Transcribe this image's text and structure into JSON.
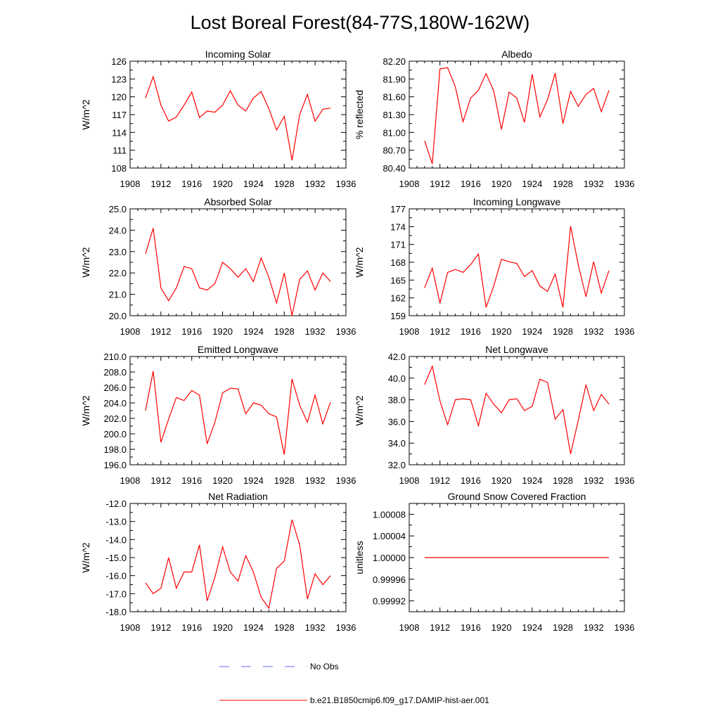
{
  "title": "Lost Boreal Forest(84-77S,180W-162W)",
  "legend": [
    {
      "label": "No Obs",
      "color": "#6a6aff",
      "dashed": true
    },
    {
      "label": "b.e21.B1850cmip6.f09_g17.DAMIP-hist-aer.001",
      "color": "#ff0000",
      "dashed": false
    }
  ],
  "chart_data": [
    {
      "type": "line",
      "title": "Incoming Solar",
      "ylabel": "W/m^2",
      "xlabel": "",
      "xlim": [
        1908,
        1936
      ],
      "xticks": [
        1908,
        1912,
        1916,
        1920,
        1924,
        1928,
        1932,
        1936
      ],
      "xtick_labels": [
        "1908",
        "1912",
        "1916",
        "1920",
        "1924",
        "1928",
        "1932",
        "1936"
      ],
      "ylim": [
        108,
        126
      ],
      "yticks": [
        108,
        111,
        114,
        117,
        120,
        123,
        126
      ],
      "ytick_labels": [
        "108",
        "111",
        "114",
        "117",
        "120",
        "123",
        "126"
      ],
      "series": [
        {
          "name": "b.e21.B1850cmip6.f09_g17.DAMIP-hist-aer.001",
          "color": "#ff0000",
          "x": [
            1910,
            1911,
            1912,
            1913,
            1914,
            1915,
            1916,
            1917,
            1918,
            1919,
            1920,
            1921,
            1922,
            1923,
            1924,
            1925,
            1926,
            1927,
            1928,
            1929,
            1930,
            1931,
            1932,
            1933,
            1934
          ],
          "y": [
            119.8,
            123.4,
            118.6,
            115.9,
            116.6,
            118.6,
            120.8,
            116.5,
            117.6,
            117.4,
            118.6,
            121.0,
            118.6,
            117.6,
            119.8,
            120.9,
            118.0,
            114.4,
            116.7,
            109.3,
            117.0,
            120.4,
            115.9,
            117.9,
            118.1
          ]
        }
      ]
    },
    {
      "type": "line",
      "title": "Albedo",
      "ylabel": "% reflected",
      "xlabel": "",
      "xlim": [
        1908,
        1936
      ],
      "xticks": [
        1908,
        1912,
        1916,
        1920,
        1924,
        1928,
        1932,
        1936
      ],
      "xtick_labels": [
        "1908",
        "1912",
        "1916",
        "1920",
        "1924",
        "1928",
        "1932",
        "1936"
      ],
      "ylim": [
        80.4,
        82.2
      ],
      "yticks": [
        80.4,
        80.7,
        81.0,
        81.3,
        81.6,
        81.9,
        82.2
      ],
      "ytick_labels": [
        "80.40",
        "80.70",
        "81.00",
        "81.30",
        "81.60",
        "81.90",
        "82.20"
      ],
      "series": [
        {
          "name": "b.e21.B1850cmip6.f09_g17.DAMIP-hist-aer.001",
          "color": "#ff0000",
          "x": [
            1910,
            1911,
            1912,
            1913,
            1914,
            1915,
            1916,
            1917,
            1918,
            1919,
            1920,
            1921,
            1922,
            1923,
            1924,
            1925,
            1926,
            1927,
            1928,
            1929,
            1930,
            1931,
            1932,
            1933,
            1934
          ],
          "y": [
            80.86,
            80.47,
            82.07,
            82.09,
            81.77,
            81.18,
            81.58,
            81.71,
            81.99,
            81.7,
            81.05,
            81.68,
            81.58,
            81.17,
            81.98,
            81.26,
            81.55,
            82.0,
            81.15,
            81.69,
            81.44,
            81.64,
            81.74,
            81.35,
            81.71
          ]
        }
      ]
    },
    {
      "type": "line",
      "title": "Absorbed Solar",
      "ylabel": "W/m^2",
      "xlabel": "",
      "xlim": [
        1908,
        1936
      ],
      "xticks": [
        1908,
        1912,
        1916,
        1920,
        1924,
        1928,
        1932,
        1936
      ],
      "xtick_labels": [
        "1908",
        "1912",
        "1916",
        "1920",
        "1924",
        "1928",
        "1932",
        "1936"
      ],
      "ylim": [
        20.0,
        25.0
      ],
      "yticks": [
        20,
        21,
        22,
        23,
        24,
        25
      ],
      "ytick_labels": [
        "20.0",
        "21.0",
        "22.0",
        "23.0",
        "24.0",
        "25.0"
      ],
      "series": [
        {
          "name": "b.e21.B1850cmip6.f09_g17.DAMIP-hist-aer.001",
          "color": "#ff0000",
          "x": [
            1910,
            1911,
            1912,
            1913,
            1914,
            1915,
            1916,
            1917,
            1918,
            1919,
            1920,
            1921,
            1922,
            1923,
            1924,
            1925,
            1926,
            1927,
            1928,
            1929,
            1930,
            1931,
            1932,
            1933,
            1934
          ],
          "y": [
            22.9,
            24.1,
            21.3,
            20.7,
            21.3,
            22.3,
            22.2,
            21.3,
            21.2,
            21.5,
            22.5,
            22.2,
            21.8,
            22.2,
            21.6,
            22.7,
            21.8,
            20.6,
            22.0,
            20.0,
            21.7,
            22.1,
            21.2,
            22.0,
            21.6
          ]
        }
      ]
    },
    {
      "type": "line",
      "title": "Incoming Longwave",
      "ylabel": "W/m^2",
      "xlabel": "",
      "xlim": [
        1908,
        1936
      ],
      "xticks": [
        1908,
        1912,
        1916,
        1920,
        1924,
        1928,
        1932,
        1936
      ],
      "xtick_labels": [
        "1908",
        "1912",
        "1916",
        "1920",
        "1924",
        "1928",
        "1932",
        "1936"
      ],
      "ylim": [
        159,
        177
      ],
      "yticks": [
        159,
        162,
        165,
        168,
        171,
        174,
        177
      ],
      "ytick_labels": [
        "159",
        "162",
        "165",
        "168",
        "171",
        "174",
        "177"
      ],
      "series": [
        {
          "name": "b.e21.B1850cmip6.f09_g17.DAMIP-hist-aer.001",
          "color": "#ff0000",
          "x": [
            1910,
            1911,
            1912,
            1913,
            1914,
            1915,
            1916,
            1917,
            1918,
            1919,
            1920,
            1921,
            1922,
            1923,
            1924,
            1925,
            1926,
            1927,
            1928,
            1929,
            1930,
            1931,
            1932,
            1933,
            1934
          ],
          "y": [
            163.7,
            167.0,
            161.1,
            166.3,
            166.8,
            166.3,
            167.6,
            169.4,
            160.4,
            164.0,
            168.5,
            168.1,
            167.8,
            165.6,
            166.6,
            164.0,
            163.1,
            166.0,
            160.4,
            174.1,
            167.6,
            162.2,
            168.1,
            162.8,
            166.6
          ]
        }
      ]
    },
    {
      "type": "line",
      "title": "Emitted Longwave",
      "ylabel": "W/m^2",
      "xlabel": "",
      "xlim": [
        1908,
        1936
      ],
      "xticks": [
        1908,
        1912,
        1916,
        1920,
        1924,
        1928,
        1932,
        1936
      ],
      "xtick_labels": [
        "1908",
        "1912",
        "1916",
        "1920",
        "1924",
        "1928",
        "1932",
        "1936"
      ],
      "ylim": [
        196,
        210
      ],
      "yticks": [
        196,
        198,
        200,
        202,
        204,
        206,
        208,
        210
      ],
      "ytick_labels": [
        "196.0",
        "198.0",
        "200.0",
        "202.0",
        "204.0",
        "206.0",
        "208.0",
        "210.0"
      ],
      "series": [
        {
          "name": "b.e21.B1850cmip6.f09_g17.DAMIP-hist-aer.001",
          "color": "#ff0000",
          "x": [
            1910,
            1911,
            1912,
            1913,
            1914,
            1915,
            1916,
            1917,
            1918,
            1919,
            1920,
            1921,
            1922,
            1923,
            1924,
            1925,
            1926,
            1927,
            1928,
            1929,
            1930,
            1931,
            1932,
            1933,
            1934
          ],
          "y": [
            203.0,
            208.1,
            198.9,
            201.9,
            204.7,
            204.3,
            205.6,
            205.0,
            198.7,
            201.5,
            205.3,
            205.9,
            205.8,
            202.6,
            204.0,
            203.7,
            202.6,
            202.2,
            197.3,
            207.1,
            203.7,
            201.5,
            205.0,
            201.3,
            204.1
          ]
        }
      ]
    },
    {
      "type": "line",
      "title": "Net Longwave",
      "ylabel": "W/m^2",
      "xlabel": "",
      "xlim": [
        1908,
        1936
      ],
      "xticks": [
        1908,
        1912,
        1916,
        1920,
        1924,
        1928,
        1932,
        1936
      ],
      "xtick_labels": [
        "1908",
        "1912",
        "1916",
        "1920",
        "1924",
        "1928",
        "1932",
        "1936"
      ],
      "ylim": [
        32,
        42
      ],
      "yticks": [
        32,
        34,
        36,
        38,
        40,
        42
      ],
      "ytick_labels": [
        "32.0",
        "34.0",
        "36.0",
        "38.0",
        "40.0",
        "42.0"
      ],
      "series": [
        {
          "name": "b.e21.B1850cmip6.f09_g17.DAMIP-hist-aer.001",
          "color": "#ff0000",
          "x": [
            1910,
            1911,
            1912,
            1913,
            1914,
            1915,
            1916,
            1917,
            1918,
            1919,
            1920,
            1921,
            1922,
            1923,
            1924,
            1925,
            1926,
            1927,
            1928,
            1929,
            1930,
            1931,
            1932,
            1933,
            1934
          ],
          "y": [
            39.4,
            41.1,
            37.9,
            35.7,
            38.0,
            38.1,
            38.0,
            35.6,
            38.6,
            37.6,
            36.8,
            38.0,
            38.1,
            37.0,
            37.4,
            39.9,
            39.6,
            36.2,
            37.1,
            33.0,
            36.1,
            39.4,
            37.0,
            38.5,
            37.6
          ]
        }
      ]
    },
    {
      "type": "line",
      "title": "Net Radiation",
      "ylabel": "W/m^2",
      "xlabel": "",
      "xlim": [
        1908,
        1936
      ],
      "xticks": [
        1908,
        1912,
        1916,
        1920,
        1924,
        1928,
        1932,
        1936
      ],
      "xtick_labels": [
        "1908",
        "1912",
        "1916",
        "1920",
        "1924",
        "1928",
        "1932",
        "1936"
      ],
      "ylim": [
        -18,
        -12
      ],
      "yticks": [
        -18,
        -17,
        -16,
        -15,
        -14,
        -13,
        -12
      ],
      "ytick_labels": [
        "-18.0",
        "-17.0",
        "-16.0",
        "-15.0",
        "-14.0",
        "-13.0",
        "-12.0"
      ],
      "series": [
        {
          "name": "b.e21.B1850cmip6.f09_g17.DAMIP-hist-aer.001",
          "color": "#ff0000",
          "x": [
            1910,
            1911,
            1912,
            1913,
            1914,
            1915,
            1916,
            1917,
            1918,
            1919,
            1920,
            1921,
            1922,
            1923,
            1924,
            1925,
            1926,
            1927,
            1928,
            1929,
            1930,
            1931,
            1932,
            1933,
            1934
          ],
          "y": [
            -16.4,
            -17.0,
            -16.7,
            -15.0,
            -16.7,
            -15.8,
            -15.8,
            -14.3,
            -17.4,
            -16.1,
            -14.4,
            -15.8,
            -16.3,
            -14.9,
            -15.8,
            -17.2,
            -17.8,
            -15.6,
            -15.2,
            -12.9,
            -14.3,
            -17.3,
            -15.9,
            -16.5,
            -16.0
          ]
        }
      ]
    },
    {
      "type": "line",
      "title": "Ground Snow Covered Fraction",
      "ylabel": "unitless",
      "xlabel": "",
      "xlim": [
        1908,
        1936
      ],
      "xticks": [
        1908,
        1912,
        1916,
        1920,
        1924,
        1928,
        1932,
        1936
      ],
      "xtick_labels": [
        "1908",
        "1912",
        "1916",
        "1920",
        "1924",
        "1928",
        "1932",
        "1936"
      ],
      "ylim": [
        0.9999,
        1.0001
      ],
      "yticks": [
        0.99992,
        0.99996,
        1.0,
        1.00004,
        1.00008
      ],
      "ytick_labels": [
        "0.99992",
        "0.99996",
        "1.00000",
        "1.00004",
        "1.00008"
      ],
      "series": [
        {
          "name": "b.e21.B1850cmip6.f09_g17.DAMIP-hist-aer.001",
          "color": "#ff0000",
          "x": [
            1910,
            1934
          ],
          "y": [
            1.0,
            1.0
          ]
        }
      ]
    }
  ]
}
